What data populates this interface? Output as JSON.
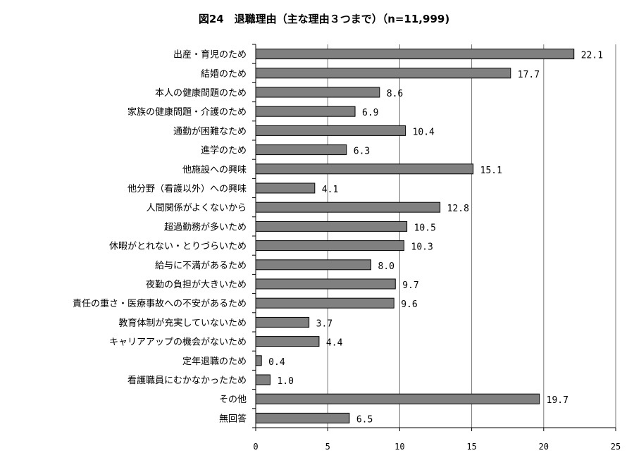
{
  "chart_data": {
    "type": "bar",
    "orientation": "horizontal",
    "title": "図24　退職理由（主な理由３つまで）（n=11,999)",
    "categories": [
      "出産・育児のため",
      "結婚のため",
      "本人の健康問題のため",
      "家族の健康問題・介護のため",
      "通勤が困難なため",
      "進学のため",
      "他施設への興味",
      "他分野（看護以外）への興味",
      "人間関係がよくないから",
      "超過勤務が多いため",
      "休暇がとれない・とりづらいため",
      "給与に不満があるため",
      "夜勤の負担が大きいため",
      "責任の重さ・医療事故への不安があるため",
      "教育体制が充実していないため",
      "キャリアアップの機会がないため",
      "定年退職のため",
      "看護職員にむかなかったため",
      "その他",
      "無回答"
    ],
    "values": [
      22.1,
      17.7,
      8.6,
      6.9,
      10.4,
      6.3,
      15.1,
      4.1,
      12.8,
      10.5,
      10.3,
      8.0,
      9.7,
      9.6,
      3.7,
      4.4,
      0.4,
      1.0,
      19.7,
      6.5
    ],
    "value_labels": [
      "22.1",
      "17.7",
      "8.6",
      "6.9",
      "10.4",
      "6.3",
      "15.1",
      "4.1",
      "12.8",
      "10.5",
      "10.3",
      "8.0",
      "9.7",
      "9.6",
      "3.7",
      "4.4",
      "0.4",
      "1.0",
      "19.7",
      "6.5"
    ],
    "xlim": [
      0,
      25
    ],
    "xticks": [
      "0",
      "5",
      "10",
      "15",
      "20",
      "25"
    ],
    "grid": true,
    "bar_color": "#808080",
    "xlabel": "",
    "ylabel": ""
  }
}
